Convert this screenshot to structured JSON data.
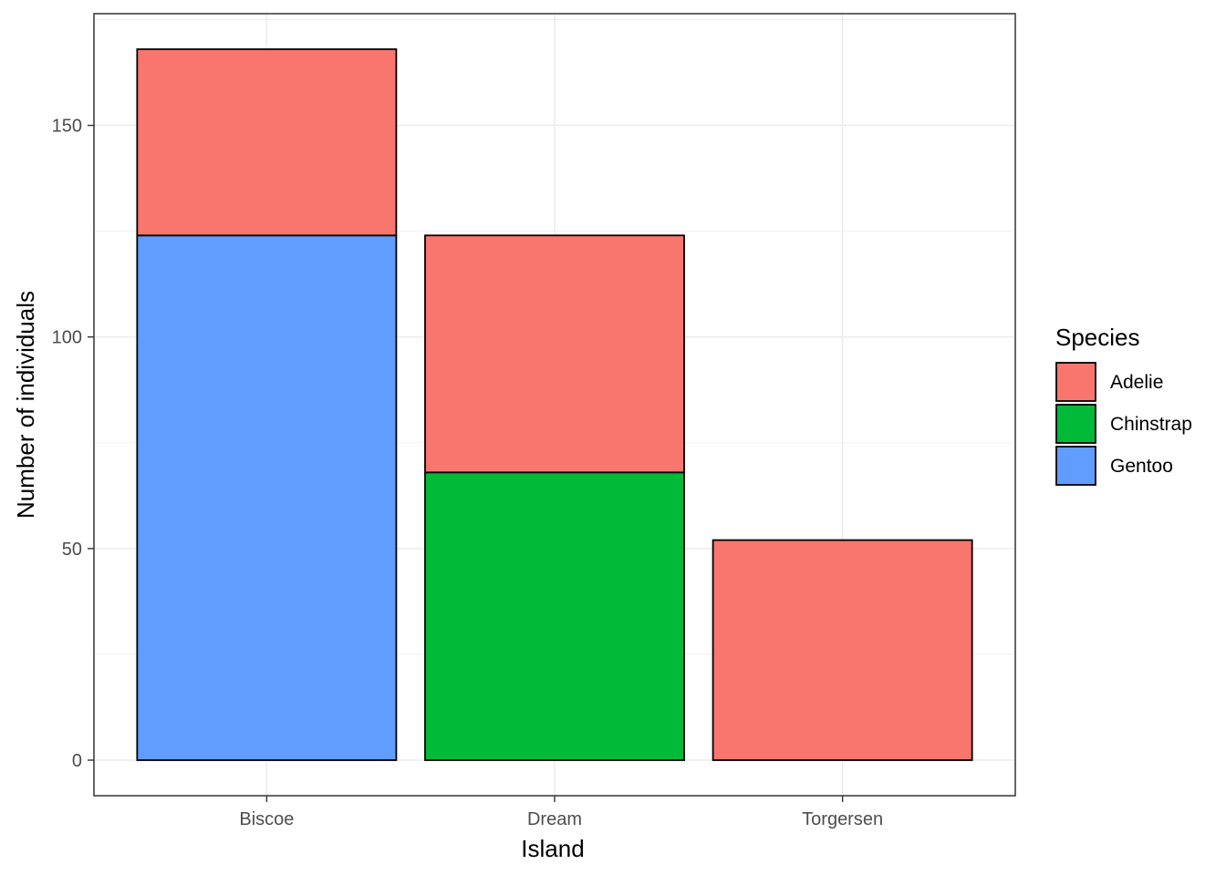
{
  "chart_data": {
    "type": "bar",
    "stacked": true,
    "categories": [
      "Biscoe",
      "Dream",
      "Torgersen"
    ],
    "series": [
      {
        "name": "Adelie",
        "values": [
          44,
          56,
          52
        ],
        "color": "#F8766D"
      },
      {
        "name": "Chinstrap",
        "values": [
          0,
          68,
          0
        ],
        "color": "#00BA38"
      },
      {
        "name": "Gentoo",
        "values": [
          124,
          0,
          0
        ],
        "color": "#619CFF"
      }
    ],
    "stack_order_bottom_to_top": [
      "Gentoo",
      "Chinstrap",
      "Adelie"
    ],
    "xlabel": "Island",
    "ylabel": "Number of individuals",
    "yticks": [
      0,
      50,
      100,
      150
    ],
    "ylim": [
      -8.4,
      176.4
    ],
    "grid": true,
    "legend": {
      "title": "Species",
      "position": "right",
      "entries": [
        "Adelie",
        "Chinstrap",
        "Gentoo"
      ]
    }
  }
}
